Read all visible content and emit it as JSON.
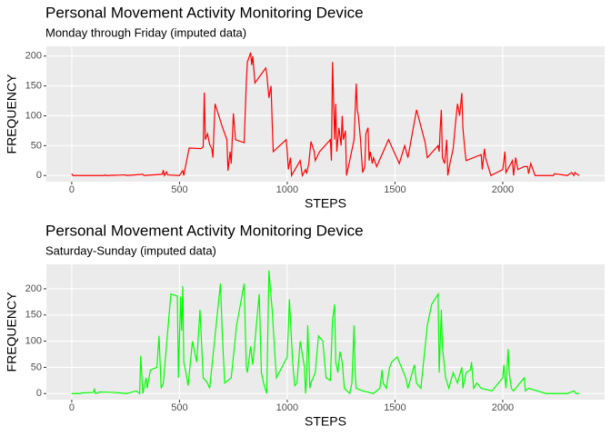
{
  "chart_data": [
    {
      "type": "line",
      "title": "Personal Movement Activity Monitoring Device",
      "subtitle": "Monday through Friday (imputed data)",
      "x_label": "STEPS",
      "y_label": "FREQUENCY",
      "color": "#ff0000",
      "x": [
        0,
        5,
        150,
        155,
        160,
        250,
        255,
        330,
        335,
        420,
        425,
        430,
        440,
        445,
        500,
        505,
        515,
        520,
        525,
        545,
        600,
        610,
        615,
        620,
        630,
        640,
        650,
        655,
        665,
        700,
        720,
        725,
        735,
        740,
        750,
        760,
        800,
        810,
        815,
        820,
        830,
        835,
        840,
        850,
        900,
        905,
        915,
        925,
        930,
        935,
        995,
        1000,
        1005,
        1015,
        1020,
        1060,
        1070,
        1085,
        1090,
        1100,
        1110,
        1125,
        1130,
        1150,
        1200,
        1205,
        1210,
        1220,
        1225,
        1230,
        1240,
        1250,
        1255,
        1260,
        1270,
        1275,
        1290,
        1310,
        1320,
        1325,
        1330,
        1340,
        1345,
        1350,
        1360,
        1365,
        1375,
        1380,
        1385,
        1395,
        1400,
        1415,
        1470,
        1520,
        1545,
        1560,
        1600,
        1640,
        1650,
        1700,
        1705,
        1710,
        1715,
        1720,
        1730,
        1740,
        1745,
        1755,
        1770,
        1780,
        1790,
        1800,
        1810,
        1815,
        1825,
        1830,
        1900,
        1905,
        1915,
        1920,
        1945,
        2000,
        2010,
        2015,
        2045,
        2050,
        2060,
        2070,
        2100,
        2115,
        2120,
        2130,
        2150,
        2200,
        2235,
        2240,
        2300,
        2320,
        2330,
        2335,
        2345,
        2355
      ],
      "values": [
        3,
        0,
        0,
        1,
        0,
        1,
        0,
        2,
        0,
        2,
        9,
        0,
        6,
        1,
        0,
        3,
        8,
        0,
        10,
        46,
        45,
        48,
        139,
        60,
        70,
        52,
        45,
        30,
        120,
        80,
        60,
        8,
        40,
        20,
        104,
        60,
        55,
        155,
        190,
        195,
        206,
        185,
        200,
        155,
        180,
        170,
        130,
        150,
        90,
        40,
        60,
        40,
        10,
        30,
        0,
        25,
        0,
        10,
        3,
        20,
        57,
        40,
        25,
        40,
        60,
        25,
        190,
        60,
        120,
        40,
        80,
        50,
        100,
        60,
        75,
        0,
        25,
        60,
        154,
        110,
        100,
        60,
        30,
        5,
        15,
        70,
        80,
        25,
        40,
        20,
        30,
        15,
        60,
        20,
        50,
        30,
        110,
        55,
        30,
        50,
        40,
        80,
        110,
        30,
        20,
        60,
        0,
        20,
        45,
        85,
        120,
        100,
        138,
        80,
        40,
        25,
        35,
        10,
        45,
        30,
        0,
        10,
        40,
        5,
        25,
        0,
        30,
        10,
        15,
        15,
        3,
        20,
        0,
        0,
        0,
        3,
        0,
        5,
        0,
        5,
        2,
        0
      ],
      "xlim": [
        -117.75,
        2472.75
      ],
      "ylim": [
        -10.3,
        216.3
      ],
      "xticks": [
        0,
        500,
        1000,
        1500,
        2000
      ],
      "yticks": [
        0,
        50,
        100,
        150,
        200
      ],
      "grid": true
    },
    {
      "type": "line",
      "title": "Personal Movement Activity Monitoring Device",
      "subtitle": "Saturday-Sunday (imputed data)",
      "x_label": "STEPS",
      "y_label": "FREQUENCY",
      "color": "#00ff00",
      "x": [
        0,
        40,
        45,
        100,
        105,
        110,
        130,
        200,
        255,
        300,
        315,
        320,
        330,
        345,
        350,
        365,
        395,
        405,
        415,
        425,
        460,
        490,
        495,
        505,
        510,
        515,
        520,
        530,
        540,
        560,
        580,
        595,
        610,
        630,
        640,
        690,
        700,
        710,
        740,
        765,
        800,
        805,
        810,
        815,
        830,
        840,
        870,
        880,
        890,
        905,
        915,
        930,
        945,
        950,
        1000,
        1010,
        1020,
        1025,
        1035,
        1045,
        1060,
        1080,
        1085,
        1090,
        1095,
        1105,
        1110,
        1130,
        1145,
        1165,
        1180,
        1200,
        1210,
        1220,
        1225,
        1235,
        1245,
        1255,
        1265,
        1290,
        1300,
        1310,
        1315,
        1320,
        1350,
        1400,
        1430,
        1440,
        1445,
        1460,
        1475,
        1485,
        1510,
        1530,
        1550,
        1560,
        1590,
        1600,
        1620,
        1650,
        1670,
        1700,
        1705,
        1715,
        1720,
        1735,
        1750,
        1770,
        1790,
        1810,
        1815,
        1830,
        1850,
        1855,
        1865,
        1880,
        1900,
        1950,
        2000,
        2005,
        2015,
        2025,
        2030,
        2040,
        2050,
        2100,
        2105,
        2120,
        2200,
        2300,
        2330,
        2340,
        2355
      ],
      "values": [
        0,
        0,
        1,
        2,
        8,
        0,
        3,
        2,
        0,
        5,
        0,
        72,
        0,
        30,
        10,
        45,
        50,
        110,
        10,
        20,
        190,
        186,
        30,
        185,
        120,
        205,
        60,
        40,
        15,
        100,
        60,
        160,
        30,
        20,
        10,
        210,
        100,
        20,
        30,
        130,
        210,
        130,
        50,
        40,
        90,
        55,
        190,
        40,
        20,
        0,
        235,
        160,
        60,
        30,
        70,
        180,
        100,
        60,
        15,
        20,
        100,
        50,
        0,
        30,
        130,
        10,
        20,
        40,
        110,
        100,
        30,
        25,
        140,
        170,
        60,
        40,
        80,
        60,
        10,
        0,
        20,
        130,
        40,
        10,
        5,
        0,
        10,
        45,
        20,
        10,
        50,
        60,
        70,
        50,
        30,
        10,
        55,
        20,
        10,
        130,
        170,
        190,
        40,
        160,
        90,
        30,
        10,
        40,
        20,
        50,
        10,
        40,
        45,
        60,
        10,
        20,
        10,
        5,
        30,
        55,
        10,
        85,
        40,
        10,
        5,
        30,
        5,
        10,
        0,
        0,
        5,
        0,
        0
      ],
      "xlim": [
        -117.75,
        2472.75
      ],
      "ylim": [
        -11.75,
        246.75
      ],
      "xticks": [
        0,
        500,
        1000,
        1500,
        2000
      ],
      "yticks": [
        0,
        50,
        100,
        150,
        200
      ],
      "grid": true
    }
  ]
}
